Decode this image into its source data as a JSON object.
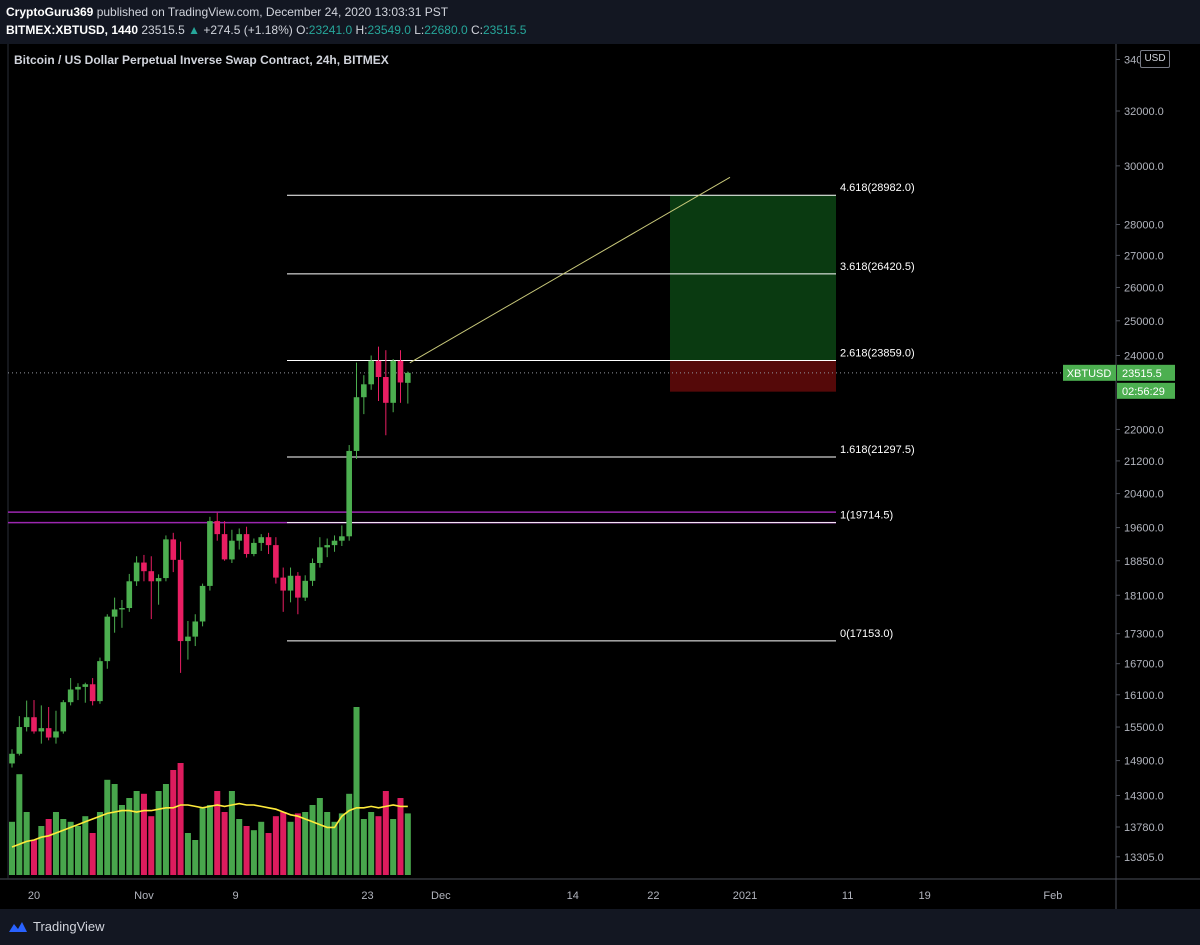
{
  "header": {
    "author": "CryptoGuru369",
    "published_text": "published on TradingView.com, December 24, 2020 13:03:31 PST",
    "symbol": "BITMEX:XBTUSD, 1440",
    "last": "23515.5",
    "change": "+274.5 (+1.18%)",
    "o_label": "O:",
    "o_value": "23241.0",
    "h_label": "H:",
    "h_value": "23549.0",
    "l_label": "L:",
    "l_value": "22680.0",
    "c_label": "C:",
    "c_value": "23515.5"
  },
  "footer": {
    "brand": "TradingView"
  },
  "price_axis": {
    "currency_button": "USD"
  },
  "colors": {
    "up": "#4caf50",
    "down": "#e91e63",
    "ma": "#ffeb3b",
    "fib": "#ffffff",
    "purple": "#9c27b0",
    "target_zone": "#0b3d12",
    "stop_zone": "#5a0a0a",
    "axis_text": "#b2b5be",
    "price_tag": "#4caf50"
  },
  "chart_data": {
    "type": "candlestick",
    "title": "Bitcoin / US Dollar Perpetual Inverse Swap Contract, 24h, BITMEX",
    "y_axis": {
      "scale": "log",
      "range": [
        13100,
        34100
      ],
      "ticks": [
        "34000.0",
        "32000.0",
        "30000.0",
        "28000.0",
        "27000.0",
        "26000.0",
        "25000.0",
        "24000.0",
        "22000.0",
        "21200.0",
        "20400.0",
        "19600.0",
        "18850.0",
        "18100.0",
        "17300.0",
        "16700.0",
        "16100.0",
        "15500.0",
        "14900.0",
        "14300.0",
        "13780.0",
        "13305.0"
      ]
    },
    "x_axis": {
      "ticks": [
        "20",
        "Nov",
        "9",
        "23",
        "Dec",
        "14",
        "22",
        "2021",
        "11",
        "19",
        "Feb"
      ]
    },
    "candles": [
      {
        "o": 14850,
        "h": 15100,
        "l": 14780,
        "c": 15020
      },
      {
        "o": 15020,
        "h": 15700,
        "l": 14990,
        "c": 15500
      },
      {
        "o": 15500,
        "h": 15990,
        "l": 15420,
        "c": 15680
      },
      {
        "o": 15680,
        "h": 16000,
        "l": 15380,
        "c": 15420
      },
      {
        "o": 15420,
        "h": 15900,
        "l": 15200,
        "c": 15480
      },
      {
        "o": 15480,
        "h": 15870,
        "l": 15260,
        "c": 15310
      },
      {
        "o": 15310,
        "h": 15800,
        "l": 15200,
        "c": 15420
      },
      {
        "o": 15420,
        "h": 16000,
        "l": 15380,
        "c": 15960
      },
      {
        "o": 15960,
        "h": 16420,
        "l": 15900,
        "c": 16200
      },
      {
        "o": 16200,
        "h": 16320,
        "l": 16000,
        "c": 16250
      },
      {
        "o": 16250,
        "h": 16330,
        "l": 15950,
        "c": 16300
      },
      {
        "o": 16300,
        "h": 16420,
        "l": 15900,
        "c": 15980
      },
      {
        "o": 15980,
        "h": 16820,
        "l": 15930,
        "c": 16750
      },
      {
        "o": 16750,
        "h": 17700,
        "l": 16600,
        "c": 17650
      },
      {
        "o": 17650,
        "h": 18050,
        "l": 17320,
        "c": 17800
      },
      {
        "o": 17800,
        "h": 18000,
        "l": 17420,
        "c": 17830
      },
      {
        "o": 17830,
        "h": 18560,
        "l": 17750,
        "c": 18400
      },
      {
        "o": 18400,
        "h": 18950,
        "l": 18300,
        "c": 18810
      },
      {
        "o": 18810,
        "h": 18980,
        "l": 18400,
        "c": 18620
      },
      {
        "o": 18620,
        "h": 18950,
        "l": 17600,
        "c": 18400
      },
      {
        "o": 18400,
        "h": 18550,
        "l": 17900,
        "c": 18470
      },
      {
        "o": 18470,
        "h": 19420,
        "l": 18400,
        "c": 19330
      },
      {
        "o": 19330,
        "h": 19480,
        "l": 18600,
        "c": 18870
      },
      {
        "o": 18870,
        "h": 19280,
        "l": 16520,
        "c": 17150
      },
      {
        "o": 17150,
        "h": 17560,
        "l": 16780,
        "c": 17240
      },
      {
        "o": 17240,
        "h": 17700,
        "l": 17050,
        "c": 17550
      },
      {
        "o": 17550,
        "h": 18350,
        "l": 17450,
        "c": 18300
      },
      {
        "o": 18300,
        "h": 19850,
        "l": 18200,
        "c": 19750
      },
      {
        "o": 19750,
        "h": 19950,
        "l": 19300,
        "c": 19450
      },
      {
        "o": 19450,
        "h": 19750,
        "l": 18850,
        "c": 18880
      },
      {
        "o": 18880,
        "h": 19550,
        "l": 18800,
        "c": 19300
      },
      {
        "o": 19300,
        "h": 19580,
        "l": 19100,
        "c": 19450
      },
      {
        "o": 19450,
        "h": 19620,
        "l": 18920,
        "c": 19000
      },
      {
        "o": 19000,
        "h": 19350,
        "l": 18950,
        "c": 19250
      },
      {
        "o": 19250,
        "h": 19450,
        "l": 19070,
        "c": 19380
      },
      {
        "o": 19380,
        "h": 19480,
        "l": 19000,
        "c": 19200
      },
      {
        "o": 19200,
        "h": 19380,
        "l": 18350,
        "c": 18480
      },
      {
        "o": 18480,
        "h": 18700,
        "l": 17750,
        "c": 18200
      },
      {
        "o": 18200,
        "h": 18700,
        "l": 17950,
        "c": 18520
      },
      {
        "o": 18520,
        "h": 18600,
        "l": 17700,
        "c": 18050
      },
      {
        "o": 18050,
        "h": 18530,
        "l": 17980,
        "c": 18410
      },
      {
        "o": 18410,
        "h": 18900,
        "l": 18300,
        "c": 18800
      },
      {
        "o": 18800,
        "h": 19380,
        "l": 18700,
        "c": 19150
      },
      {
        "o": 19150,
        "h": 19350,
        "l": 18930,
        "c": 19200
      },
      {
        "o": 19200,
        "h": 19420,
        "l": 19050,
        "c": 19300
      },
      {
        "o": 19300,
        "h": 19650,
        "l": 19180,
        "c": 19400
      },
      {
        "o": 19400,
        "h": 21600,
        "l": 19300,
        "c": 21450
      },
      {
        "o": 21450,
        "h": 23800,
        "l": 21250,
        "c": 22850
      },
      {
        "o": 22850,
        "h": 23450,
        "l": 22400,
        "c": 23200
      },
      {
        "o": 23200,
        "h": 24000,
        "l": 23050,
        "c": 23850
      },
      {
        "o": 23850,
        "h": 24250,
        "l": 22750,
        "c": 23400
      },
      {
        "o": 23400,
        "h": 24150,
        "l": 21850,
        "c": 22700
      },
      {
        "o": 22700,
        "h": 23900,
        "l": 22450,
        "c": 23850
      },
      {
        "o": 23850,
        "h": 24150,
        "l": 22700,
        "c": 23250
      },
      {
        "o": 23240,
        "h": 23550,
        "l": 22680,
        "c": 23515
      }
    ],
    "volume": [
      38,
      72,
      45,
      25,
      35,
      40,
      45,
      40,
      38,
      35,
      42,
      30,
      45,
      68,
      65,
      50,
      55,
      60,
      58,
      42,
      60,
      65,
      75,
      80,
      30,
      25,
      48,
      50,
      60,
      45,
      60,
      40,
      35,
      32,
      38,
      30,
      42,
      45,
      38,
      44,
      45,
      50,
      55,
      45,
      38,
      44,
      58,
      120,
      40,
      45,
      42,
      60,
      40,
      55,
      44
    ],
    "volume_ma": [
      20,
      22,
      24,
      25,
      27,
      28,
      30,
      32,
      34,
      36,
      38,
      40,
      42,
      44,
      45,
      46,
      46,
      45,
      46,
      46,
      47,
      48,
      48,
      50,
      50,
      49,
      48,
      49,
      50,
      49,
      50,
      51,
      50,
      50,
      49,
      48,
      47,
      45,
      43,
      42,
      40,
      38,
      36,
      34,
      34,
      42,
      46,
      48,
      48,
      49,
      48,
      49,
      50,
      49,
      49
    ],
    "moving_average_label": "",
    "fib_levels": [
      {
        "label": "4.618(28982.0)",
        "price": 28982.0
      },
      {
        "label": "3.618(26420.5)",
        "price": 26420.5
      },
      {
        "label": "2.618(23859.0)",
        "price": 23859.0
      },
      {
        "label": "1.618(21297.5)",
        "price": 21297.5
      },
      {
        "label": "1(19714.5)",
        "price": 19714.5
      },
      {
        "label": "0(17153.0)",
        "price": 17153.0
      }
    ],
    "horizontal_lines": [
      19960,
      19714.5
    ],
    "position": {
      "entry": 23859,
      "target": 28982,
      "stop": 23000
    },
    "projection": {
      "from_price": 23515,
      "to_price": 29600
    },
    "current_price": {
      "symbol_tag": "XBTUSD",
      "value": "23515.5",
      "countdown": "02:56:29"
    }
  }
}
